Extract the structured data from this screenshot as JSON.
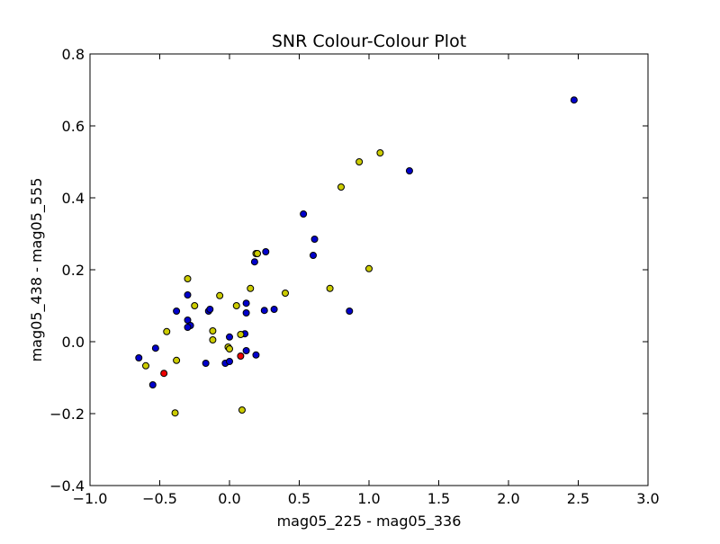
{
  "chart_data": {
    "type": "scatter",
    "title": "SNR Colour-Colour Plot",
    "xlabel": "mag05_225 - mag05_336",
    "ylabel": "mag05_438 - mag05_555",
    "xlim": [
      -1.0,
      3.0
    ],
    "ylim": [
      -0.4,
      0.8
    ],
    "x_ticks": [
      -1.0,
      -0.5,
      0.0,
      0.5,
      1.0,
      1.5,
      2.0,
      2.5,
      3.0
    ],
    "x_tick_labels": [
      "−1.0",
      "−0.5",
      "0.0",
      "0.5",
      "1.0",
      "1.5",
      "2.0",
      "2.5",
      "3.0"
    ],
    "y_ticks": [
      -0.4,
      -0.2,
      0.0,
      0.2,
      0.4,
      0.6,
      0.8
    ],
    "y_tick_labels": [
      "−0.4",
      "−0.2",
      "0.0",
      "0.2",
      "0.4",
      "0.6",
      "0.8"
    ],
    "grid": false,
    "legend": "none",
    "series": [
      {
        "color": "#0000cc",
        "points": [
          [
            2.47,
            0.672
          ],
          [
            1.29,
            0.475
          ],
          [
            0.53,
            0.355
          ],
          [
            0.61,
            0.285
          ],
          [
            0.6,
            0.24
          ],
          [
            0.26,
            0.25
          ],
          [
            0.18,
            0.222
          ],
          [
            0.86,
            0.085
          ],
          [
            0.32,
            0.09
          ],
          [
            0.25,
            0.087
          ],
          [
            0.12,
            0.107
          ],
          [
            0.12,
            0.08
          ],
          [
            -0.3,
            0.13
          ],
          [
            -0.38,
            0.085
          ],
          [
            -0.15,
            0.085
          ],
          [
            -0.14,
            0.09
          ],
          [
            -0.3,
            0.06
          ],
          [
            -0.28,
            0.045
          ],
          [
            -0.3,
            0.04
          ],
          [
            0.0,
            0.013
          ],
          [
            0.11,
            0.022
          ],
          [
            -0.53,
            -0.018
          ],
          [
            -0.65,
            -0.045
          ],
          [
            0.12,
            -0.025
          ],
          [
            0.19,
            -0.037
          ],
          [
            -0.17,
            -0.06
          ],
          [
            -0.03,
            -0.06
          ],
          [
            0.0,
            -0.055
          ],
          [
            -0.55,
            -0.12
          ]
        ]
      },
      {
        "color": "#cccc00",
        "points": [
          [
            1.08,
            0.525
          ],
          [
            0.93,
            0.5
          ],
          [
            0.8,
            0.43
          ],
          [
            1.0,
            0.203
          ],
          [
            0.19,
            0.245
          ],
          [
            0.2,
            0.245
          ],
          [
            0.72,
            0.148
          ],
          [
            0.4,
            0.135
          ],
          [
            0.15,
            0.148
          ],
          [
            -0.3,
            0.175
          ],
          [
            -0.07,
            0.128
          ],
          [
            -0.25,
            0.1
          ],
          [
            0.05,
            0.1
          ],
          [
            -0.45,
            0.028
          ],
          [
            -0.12,
            0.03
          ],
          [
            -0.12,
            0.005
          ],
          [
            0.08,
            0.02
          ],
          [
            -0.01,
            -0.015
          ],
          [
            0.0,
            -0.02
          ],
          [
            -0.38,
            -0.052
          ],
          [
            -0.6,
            -0.067
          ],
          [
            -0.39,
            -0.198
          ],
          [
            0.09,
            -0.19
          ]
        ]
      },
      {
        "color": "#ee0000",
        "points": [
          [
            -0.47,
            -0.088
          ],
          [
            0.08,
            -0.04
          ]
        ]
      }
    ]
  }
}
